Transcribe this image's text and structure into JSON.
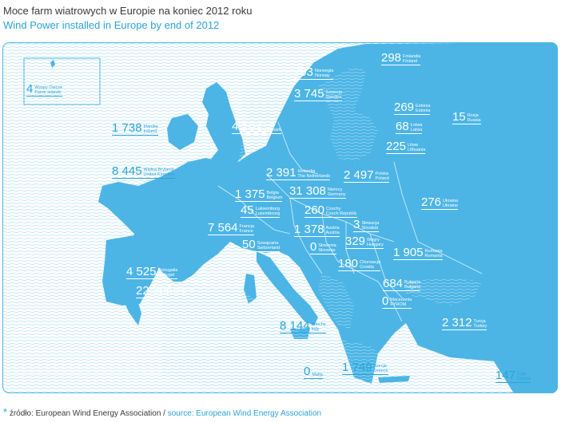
{
  "header": {
    "title": "Moce farm wiatrowych w Europie na koniec 2012 roku",
    "subtitle": "Wind Power installed in Europe by end of 2012"
  },
  "colors": {
    "land": "#4cb5e6",
    "sea_lines": "#a9dcf2",
    "accent": "#2aa3d8"
  },
  "countries": [
    {
      "value": "4",
      "pl": "Wyspy Owcze",
      "en": "Faroe Islands"
    },
    {
      "value": "298",
      "pl": "Finlandia",
      "en": "Finland"
    },
    {
      "value": "703",
      "pl": "Norwegia",
      "en": "Norway"
    },
    {
      "value": "3 745",
      "pl": "Szwecja",
      "en": "Sweden"
    },
    {
      "value": "269",
      "pl": "Estonia",
      "en": "Estonia"
    },
    {
      "value": "15",
      "pl": "Rosja",
      "en": "Russia"
    },
    {
      "value": "1 738",
      "pl": "Irlandia",
      "en": "Ireland"
    },
    {
      "value": "4 162",
      "pl": "Dania",
      "en": "Denmark"
    },
    {
      "value": "68",
      "pl": "Łotwa",
      "en": "Latvia"
    },
    {
      "value": "225",
      "pl": "Litwa",
      "en": "Lithuania"
    },
    {
      "value": "8 445",
      "pl": "Wielka Brytania",
      "en": "United Kingdom"
    },
    {
      "value": "2 391",
      "pl": "Holandia",
      "en": "The Netherlands"
    },
    {
      "value": "2 497",
      "pl": "Polska",
      "en": "Poland"
    },
    {
      "value": "1 375",
      "pl": "Belgia",
      "en": "Belgium"
    },
    {
      "value": "31 308",
      "pl": "Niemcy",
      "en": "Germany"
    },
    {
      "value": "276",
      "pl": "Ukraina",
      "en": "Ukraine"
    },
    {
      "value": "45",
      "pl": "Luksemburg",
      "en": "Luxembourg"
    },
    {
      "value": "260",
      "pl": "Czechy",
      "en": "Czech Republic"
    },
    {
      "value": "3",
      "pl": "Słowacja",
      "en": "Slovakia"
    },
    {
      "value": "7 564",
      "pl": "Francja",
      "en": "France"
    },
    {
      "value": "1 378",
      "pl": "Austria",
      "en": "Austria"
    },
    {
      "value": "50",
      "pl": "Szwajcaria",
      "en": "Switzerland"
    },
    {
      "value": "0",
      "pl": "Słowenia",
      "en": "Slovenia"
    },
    {
      "value": "329",
      "pl": "Węgry",
      "en": "Hungary"
    },
    {
      "value": "1 905",
      "pl": "Rumunia",
      "en": "Romania"
    },
    {
      "value": "4 525",
      "pl": "Portugalia",
      "en": "Portugal"
    },
    {
      "value": "180",
      "pl": "Chorwacja",
      "en": "Croatia"
    },
    {
      "value": "22 796",
      "pl": "Hiszpania",
      "en": "Spain"
    },
    {
      "value": "684",
      "pl": "Bułgaria",
      "en": "Bulgaria"
    },
    {
      "value": "0",
      "pl": "Macedonia",
      "en": "FYROM"
    },
    {
      "value": "8 144",
      "pl": "Włochy",
      "en": "Italy"
    },
    {
      "value": "2 312",
      "pl": "Turcja",
      "en": "Turkey"
    },
    {
      "value": "0",
      "pl": "Malta",
      "en": ""
    },
    {
      "value": "1 749",
      "pl": "Grecja",
      "en": "Greece"
    },
    {
      "value": "147",
      "pl": "Cypr",
      "en": "Cyprus"
    }
  ],
  "footer": {
    "star": "*",
    "source_pl": "źródło: European Wind Energy Association",
    "separator": " / ",
    "source_en": "source: European Wind Energy Association"
  }
}
